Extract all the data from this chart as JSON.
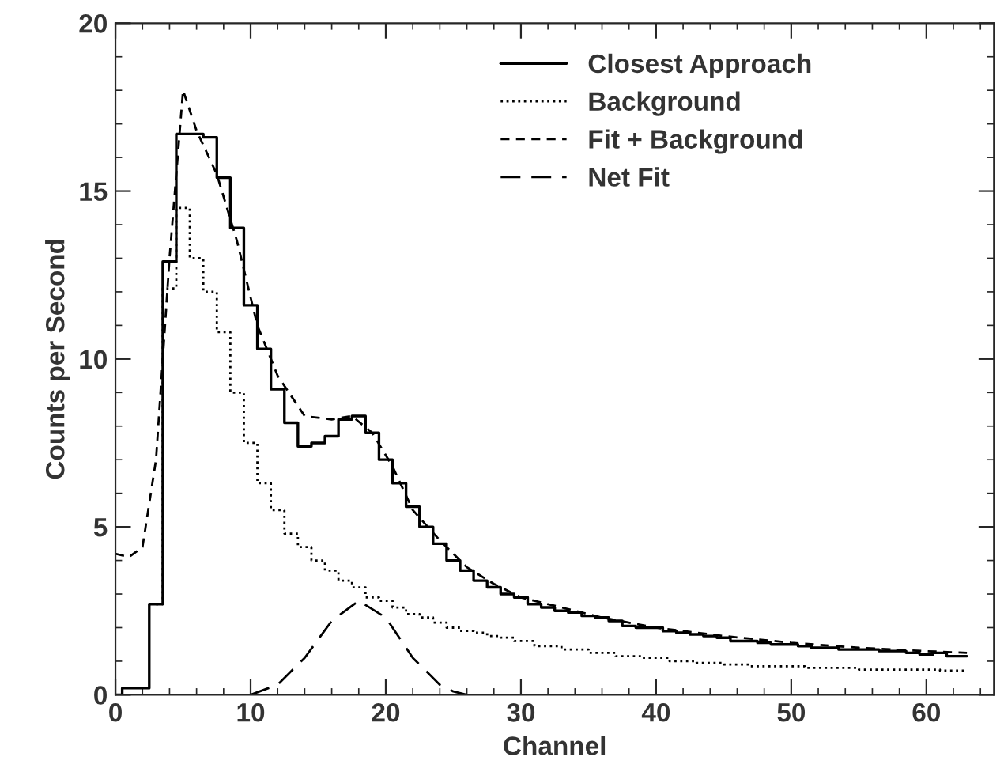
{
  "chart_data": {
    "type": "step",
    "xlabel": "Channel",
    "ylabel": "Counts per Second",
    "xlim": [
      0,
      65
    ],
    "ylim": [
      0,
      20
    ],
    "xticks": [
      0,
      10,
      20,
      30,
      40,
      50,
      60
    ],
    "yticks": [
      0,
      5,
      10,
      15,
      20
    ],
    "grid": false,
    "legend": "top right",
    "series": [
      {
        "name": "Closest Approach",
        "line_style": "solid",
        "color": "#000000",
        "x": [
          0,
          1,
          2,
          3,
          4,
          5,
          6,
          7,
          8,
          9,
          10,
          11,
          12,
          13,
          14,
          15,
          16,
          17,
          18,
          19,
          20,
          21,
          22,
          23,
          24,
          25,
          26,
          27,
          28,
          29,
          30,
          31,
          32,
          33,
          34,
          35,
          36,
          37,
          38,
          39,
          40,
          41,
          42,
          43,
          44,
          45,
          46,
          47,
          48,
          49,
          50,
          51,
          52,
          53,
          54,
          55,
          56,
          57,
          58,
          59,
          60,
          61,
          62,
          63
        ],
        "values": [
          0,
          0.2,
          0.2,
          2.7,
          12.9,
          16.7,
          16.7,
          16.6,
          15.4,
          13.9,
          11.6,
          10.3,
          9.1,
          8.1,
          7.4,
          7.5,
          7.7,
          8.2,
          8.3,
          7.8,
          7.0,
          6.3,
          5.6,
          5.0,
          4.5,
          4.0,
          3.7,
          3.4,
          3.2,
          3.0,
          2.9,
          2.7,
          2.6,
          2.5,
          2.45,
          2.35,
          2.3,
          2.2,
          2.05,
          2.0,
          2.0,
          1.9,
          1.85,
          1.8,
          1.75,
          1.7,
          1.6,
          1.6,
          1.55,
          1.5,
          1.5,
          1.45,
          1.4,
          1.4,
          1.35,
          1.35,
          1.35,
          1.3,
          1.3,
          1.25,
          1.2,
          1.25,
          1.15,
          1.15
        ]
      },
      {
        "name": "Background",
        "line_style": "dotted",
        "color": "#000000",
        "x": [
          3,
          4,
          5,
          6,
          7,
          8,
          9,
          10,
          11,
          12,
          13,
          14,
          15,
          16,
          17,
          18,
          19,
          20,
          21,
          22,
          23,
          24,
          25,
          26,
          27,
          28,
          29,
          30,
          32,
          34,
          36,
          38,
          40,
          42,
          44,
          46,
          48,
          50,
          52,
          54,
          56,
          58,
          60,
          62,
          63
        ],
        "values": [
          2.7,
          12.1,
          14.5,
          13.0,
          12.0,
          10.8,
          9.0,
          7.5,
          6.3,
          5.5,
          4.8,
          4.4,
          4.0,
          3.7,
          3.4,
          3.2,
          2.9,
          2.8,
          2.6,
          2.4,
          2.3,
          2.15,
          2.0,
          1.9,
          1.85,
          1.75,
          1.7,
          1.6,
          1.45,
          1.35,
          1.25,
          1.15,
          1.1,
          1.0,
          0.95,
          0.9,
          0.85,
          0.85,
          0.8,
          0.8,
          0.75,
          0.75,
          0.75,
          0.72,
          0.72
        ]
      },
      {
        "name": "Fit + Background",
        "type": "line",
        "line_style": "dashed",
        "color": "#000000",
        "x": [
          0,
          1,
          2,
          3,
          4,
          5,
          6,
          7.5,
          9,
          10.5,
          12,
          14,
          16,
          17.5,
          19,
          20.5,
          22,
          24,
          26,
          28,
          30,
          33,
          36,
          40,
          45,
          50,
          55,
          60,
          63
        ],
        "values": [
          4.2,
          4.1,
          4.4,
          7,
          13,
          18.0,
          16.8,
          15.5,
          13.5,
          11,
          9.5,
          8.3,
          8.2,
          8.3,
          7.8,
          6.8,
          5.5,
          4.6,
          3.8,
          3.3,
          2.9,
          2.6,
          2.3,
          2.0,
          1.75,
          1.55,
          1.4,
          1.3,
          1.25
        ]
      },
      {
        "name": "Net Fit",
        "type": "line",
        "line_style": "longdash",
        "color": "#000000",
        "x": [
          10,
          12,
          14,
          16,
          18,
          20,
          22,
          24,
          25,
          26
        ],
        "values": [
          0,
          0.3,
          1.1,
          2.2,
          2.8,
          2.3,
          1.1,
          0.3,
          0.1,
          0
        ]
      }
    ]
  }
}
